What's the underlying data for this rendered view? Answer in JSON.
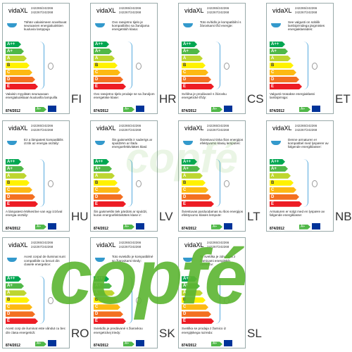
{
  "common": {
    "brand": "vidaXL",
    "codes": [
      "242265/242266",
      "242267/242268"
    ],
    "classes": [
      "A++",
      "A+",
      "A",
      "B",
      "C",
      "D",
      "E"
    ],
    "regulation": "874/2012",
    "badge": "A+"
  },
  "labels": [
    {
      "lang": "FI",
      "top": "Tähän valaisimeen soveltuvat seuraavien energialuokkien kuuluvia lamppuja",
      "bottom": "Valaisin myydään seuraavaan energialuokkaan kuuluvilla lampuilla"
    },
    {
      "lang": "HR",
      "top": "Ovo rasvjetno tijelo je kompatibilno sa žaruljama energetskih klasa:",
      "bottom": "Ovo rasvjetno tijelo prodaje se sa žaruljom energetske klase:"
    },
    {
      "lang": "CS",
      "top": "Toto svítidlo je kompatibilní s žárovkami tříd energie:",
      "bottom": "Svítilna je prodávané s žárovku energetické třídy:"
    },
    {
      "lang": "ET",
      "top": "See valgusti on sobilik lambipirnidega järgmistes energiaklassides:",
      "bottom": "Valgusti müüakse energiaklassi lambipirniga:"
    },
    {
      "lang": "HU",
      "top": "Ez a lámpatest kompatibilis izzók az energia osztály:",
      "bottom": "A lámpatest értékesítve van egy izzóval energia osztály:"
    },
    {
      "lang": "LV",
      "top": "Šis gaismeklis ir saderīgs ar spuldzēm ar šādu energoefektivitātes klasi:",
      "bottom": "Šis gaismeklis tiek pārdots ar spuldzi, kuras energoefektivitātes klase ir:"
    },
    {
      "lang": "LT",
      "top": "Šviestuvui tinka šios energijos efektyvumo klasių lemputės:",
      "bottom": "Šviestuvas parduodamas su šios energijos efektyvumo klasės lempute:"
    },
    {
      "lang": "NB",
      "top": "Denne armaturen er kompatibel med lyspærer av følgende energiklasser:",
      "bottom": "Armaturen er solgt med en lyspære av følgende energiklasse:"
    },
    {
      "lang": "RO",
      "top": "Acest corpul de iluminat sunt compatibile cu becuri din clasele energetice:",
      "bottom": "Acest corp de iluminat este vândut cu bec din clasa energetică:"
    },
    {
      "lang": "SK",
      "top": "Toto svietidlo je kompatibilné so žiarovkami triedy:",
      "bottom": "Svietidlo je predávané s žiarovkou energetickej triedy:"
    },
    {
      "lang": "SL",
      "top": "Ta svetilka je združljiva z žarnicami energijskih razredov:",
      "bottom": "Svetilka se prodaja z žarnico iz energijskega razreda:"
    }
  ],
  "watermark": "copfé"
}
